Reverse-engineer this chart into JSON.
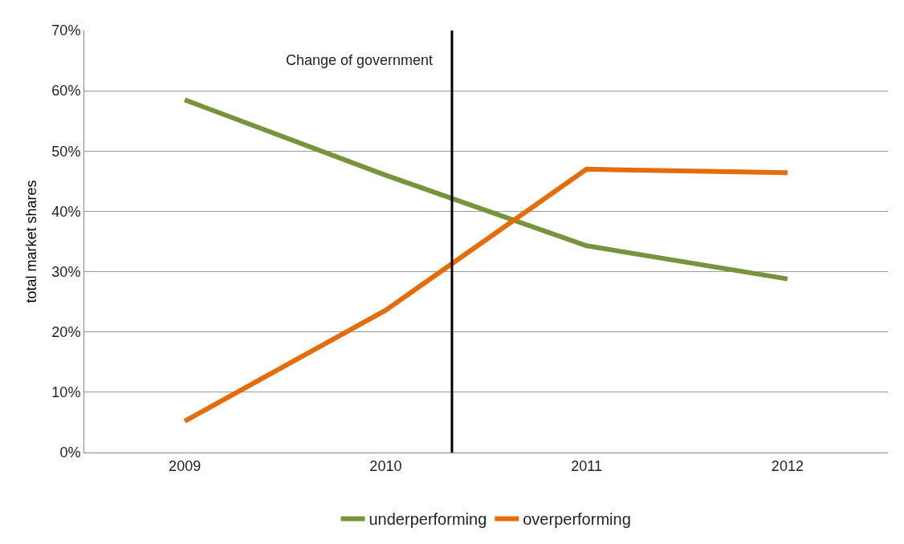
{
  "chart_data": {
    "type": "line",
    "ylabel": "total market shares",
    "x": [
      2009,
      2010,
      2011,
      2012
    ],
    "xlim": [
      2008.5,
      2012.5
    ],
    "xticks": [
      2009,
      2010,
      2011,
      2012
    ],
    "ylim": [
      0,
      70
    ],
    "yticks": [
      {
        "value": 0,
        "label": "0%"
      },
      {
        "value": 10,
        "label": "10%"
      },
      {
        "value": 20,
        "label": "20%"
      },
      {
        "value": 30,
        "label": "30%"
      },
      {
        "value": 40,
        "label": "40%"
      },
      {
        "value": 50,
        "label": "50%"
      },
      {
        "value": 60,
        "label": "60%"
      },
      {
        "value": 70,
        "label": "70%"
      }
    ],
    "series": [
      {
        "name": "underperforming",
        "color": "#77933c",
        "values": [
          58.5,
          46,
          34.3,
          28.8
        ]
      },
      {
        "name": "overperforming",
        "color": "#e46c0a",
        "values": [
          5.2,
          23.6,
          47.0,
          46.4
        ]
      }
    ],
    "ref_lines": [
      {
        "axis": "x",
        "value": 2010.33,
        "label": "Change of government",
        "color": "#000000"
      }
    ],
    "grid": "y",
    "legend": "bottom",
    "marker": "none",
    "line_style": "solid"
  }
}
